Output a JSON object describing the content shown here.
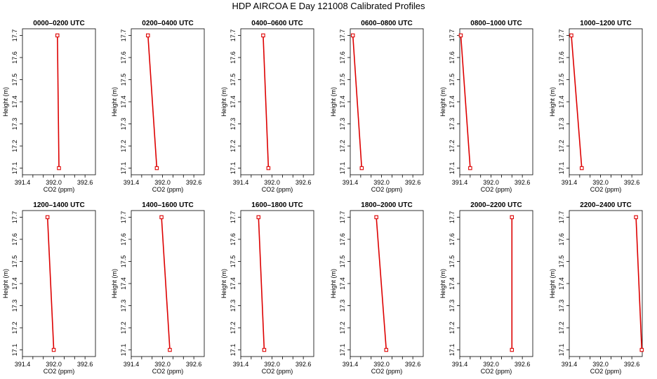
{
  "title": "HDP AIRCOA E  Day 121008  Calibrated Profiles",
  "colors": {
    "line": "#dd0000",
    "marker": "#dd0000",
    "axes": "#000000",
    "background": "#ffffff"
  },
  "chart_data": [
    {
      "type": "line",
      "title": "0000–0200 UTC",
      "xlabel": "CO2 (ppm)",
      "ylabel": "Height (m)",
      "xlim": [
        391.4,
        392.8
      ],
      "ylim": [
        17.07,
        17.73
      ],
      "xticks": [
        "391.4",
        "392.0",
        "392.6"
      ],
      "yticks": [
        "17.1",
        "17.2",
        "17.3",
        "17.4",
        "17.5",
        "17.6",
        "17.7"
      ],
      "series": [
        {
          "x": [
            392.07,
            392.1
          ],
          "y": [
            17.7,
            17.1
          ]
        }
      ]
    },
    {
      "type": "line",
      "title": "0200–0400 UTC",
      "xlabel": "CO2 (ppm)",
      "ylabel": "Height (m)",
      "xlim": [
        391.4,
        392.8
      ],
      "ylim": [
        17.07,
        17.73
      ],
      "xticks": [
        "391.4",
        "392.0",
        "392.6"
      ],
      "yticks": [
        "17.1",
        "17.2",
        "17.3",
        "17.4",
        "17.5",
        "17.6",
        "17.7"
      ],
      "series": [
        {
          "x": [
            391.72,
            391.89
          ],
          "y": [
            17.7,
            17.1
          ]
        }
      ]
    },
    {
      "type": "line",
      "title": "0400–0600 UTC",
      "xlabel": "CO2 (ppm)",
      "ylabel": "Height (m)",
      "xlim": [
        391.4,
        392.8
      ],
      "ylim": [
        17.07,
        17.73
      ],
      "xticks": [
        "391.4",
        "392.0",
        "392.6"
      ],
      "yticks": [
        "17.1",
        "17.2",
        "17.3",
        "17.4",
        "17.5",
        "17.6",
        "17.7"
      ],
      "series": [
        {
          "x": [
            391.83,
            391.93
          ],
          "y": [
            17.7,
            17.1
          ]
        }
      ]
    },
    {
      "type": "line",
      "title": "0600–0800 UTC",
      "xlabel": "CO2 (ppm)",
      "ylabel": "Height (m)",
      "xlim": [
        391.4,
        392.8
      ],
      "ylim": [
        17.07,
        17.73
      ],
      "xticks": [
        "391.4",
        "392.0",
        "392.6"
      ],
      "yticks": [
        "17.1",
        "17.2",
        "17.3",
        "17.4",
        "17.5",
        "17.6",
        "17.7"
      ],
      "series": [
        {
          "x": [
            391.45,
            391.62
          ],
          "y": [
            17.7,
            17.1
          ]
        }
      ]
    },
    {
      "type": "line",
      "title": "0800–1000 UTC",
      "xlabel": "CO2 (ppm)",
      "ylabel": "Height (m)",
      "xlim": [
        391.4,
        392.8
      ],
      "ylim": [
        17.07,
        17.73
      ],
      "xticks": [
        "391.4",
        "392.0",
        "392.6"
      ],
      "yticks": [
        "17.1",
        "17.2",
        "17.3",
        "17.4",
        "17.5",
        "17.6",
        "17.7"
      ],
      "series": [
        {
          "x": [
            391.42,
            391.6
          ],
          "y": [
            17.7,
            17.1
          ]
        }
      ]
    },
    {
      "type": "line",
      "title": "1000–1200 UTC",
      "xlabel": "CO2 (ppm)",
      "ylabel": "Height (m)",
      "xlim": [
        391.4,
        392.8
      ],
      "ylim": [
        17.07,
        17.73
      ],
      "xticks": [
        "391.4",
        "392.0",
        "392.6"
      ],
      "yticks": [
        "17.1",
        "17.2",
        "17.3",
        "17.4",
        "17.5",
        "17.6",
        "17.7"
      ],
      "series": [
        {
          "x": [
            391.44,
            391.64
          ],
          "y": [
            17.7,
            17.1
          ]
        }
      ]
    },
    {
      "type": "line",
      "title": "1200–1400 UTC",
      "xlabel": "CO2 (ppm)",
      "ylabel": "Height (m)",
      "xlim": [
        391.4,
        392.8
      ],
      "ylim": [
        17.07,
        17.73
      ],
      "xticks": [
        "391.4",
        "392.0",
        "392.6"
      ],
      "yticks": [
        "17.1",
        "17.2",
        "17.3",
        "17.4",
        "17.5",
        "17.6",
        "17.7"
      ],
      "series": [
        {
          "x": [
            391.88,
            392.0
          ],
          "y": [
            17.7,
            17.1
          ]
        }
      ]
    },
    {
      "type": "line",
      "title": "1400–1600 UTC",
      "xlabel": "CO2 (ppm)",
      "ylabel": "Height (m)",
      "xlim": [
        391.4,
        392.8
      ],
      "ylim": [
        17.07,
        17.73
      ],
      "xticks": [
        "391.4",
        "392.0",
        "392.6"
      ],
      "yticks": [
        "17.1",
        "17.2",
        "17.3",
        "17.4",
        "17.5",
        "17.6",
        "17.7"
      ],
      "series": [
        {
          "x": [
            391.98,
            392.14
          ],
          "y": [
            17.7,
            17.1
          ]
        }
      ]
    },
    {
      "type": "line",
      "title": "1600–1800 UTC",
      "xlabel": "CO2 (ppm)",
      "ylabel": "Height (m)",
      "xlim": [
        391.4,
        392.8
      ],
      "ylim": [
        17.07,
        17.73
      ],
      "xticks": [
        "391.4",
        "392.0",
        "392.6"
      ],
      "yticks": [
        "17.1",
        "17.2",
        "17.3",
        "17.4",
        "17.5",
        "17.6",
        "17.7"
      ],
      "series": [
        {
          "x": [
            391.74,
            391.85
          ],
          "y": [
            17.7,
            17.1
          ]
        }
      ]
    },
    {
      "type": "line",
      "title": "1800–2000 UTC",
      "xlabel": "CO2 (ppm)",
      "ylabel": "Height (m)",
      "xlim": [
        391.4,
        392.8
      ],
      "ylim": [
        17.07,
        17.73
      ],
      "xticks": [
        "391.4",
        "392.0",
        "392.6"
      ],
      "yticks": [
        "17.1",
        "17.2",
        "17.3",
        "17.4",
        "17.5",
        "17.6",
        "17.7"
      ],
      "series": [
        {
          "x": [
            391.9,
            392.09
          ],
          "y": [
            17.7,
            17.1
          ]
        }
      ]
    },
    {
      "type": "line",
      "title": "2000–2200 UTC",
      "xlabel": "CO2 (ppm)",
      "ylabel": "Height (m)",
      "xlim": [
        391.4,
        392.8
      ],
      "ylim": [
        17.07,
        17.73
      ],
      "xticks": [
        "391.4",
        "392.0",
        "392.6"
      ],
      "yticks": [
        "17.1",
        "17.2",
        "17.3",
        "17.4",
        "17.5",
        "17.6",
        "17.7"
      ],
      "series": [
        {
          "x": [
            392.4,
            392.4
          ],
          "y": [
            17.7,
            17.1
          ]
        }
      ]
    },
    {
      "type": "line",
      "title": "2200–2400 UTC",
      "xlabel": "CO2 (ppm)",
      "ylabel": "Height (m)",
      "xlim": [
        391.4,
        392.8
      ],
      "ylim": [
        17.07,
        17.73
      ],
      "xticks": [
        "391.4",
        "392.0",
        "392.6"
      ],
      "yticks": [
        "17.1",
        "17.2",
        "17.3",
        "17.4",
        "17.5",
        "17.6",
        "17.7"
      ],
      "series": [
        {
          "x": [
            392.68,
            392.79
          ],
          "y": [
            17.7,
            17.1
          ]
        }
      ]
    }
  ]
}
